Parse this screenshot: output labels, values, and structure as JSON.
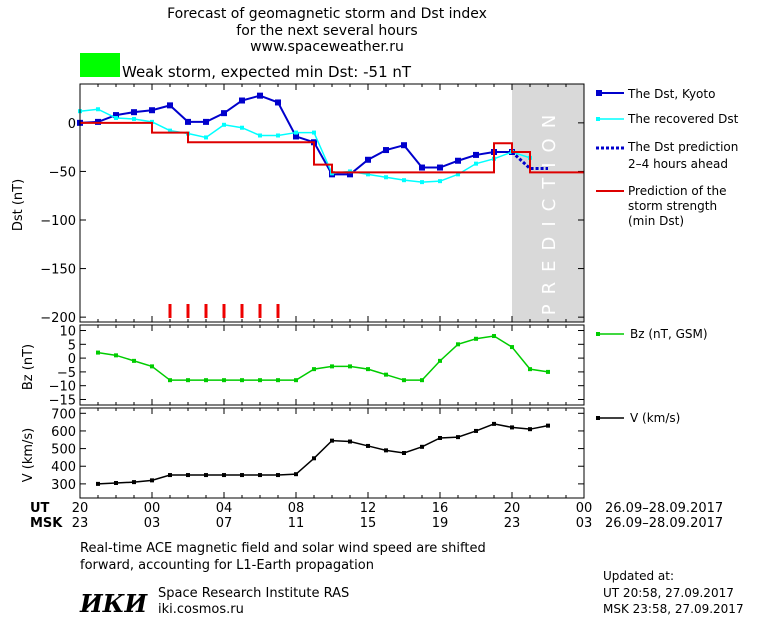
{
  "header": {
    "title_line1": "Forecast of geomagnetic storm and Dst index",
    "title_line2": "for the next several hours",
    "url": "www.spaceweather.ru",
    "storm_status": "Weak storm, expected min Dst: -51 nT",
    "storm_color": "#00ff00"
  },
  "colors": {
    "dst_kyoto": "#0000cc",
    "dst_recovered": "#00ffff",
    "dst_prediction": "#0000cc",
    "storm_strength": "#dd0000",
    "bz": "#00cc00",
    "speed": "#000000",
    "prediction_band": "#d9d9d9",
    "markers": "#ee0000"
  },
  "prediction_label": "PREDICTION",
  "legend": {
    "dst_kyoto": "The Dst, Kyoto",
    "dst_recovered": "The recovered Dst",
    "dst_prediction_1": "The Dst prediction",
    "dst_prediction_2": "2–4 hours ahead",
    "strength_1": "Prediction of the",
    "strength_2": "storm strength",
    "strength_3": "(min Dst)",
    "bz": "Bz (nT, GSM)",
    "speed": "V (km/s)"
  },
  "time_axis": {
    "ut_label": "UT",
    "msk_label": "MSK",
    "ut_ticks": [
      "20",
      "00",
      "04",
      "08",
      "12",
      "16",
      "20",
      "00"
    ],
    "msk_ticks": [
      "23",
      "03",
      "07",
      "11",
      "15",
      "19",
      "23",
      "03"
    ],
    "range_ut": "26.09–28.09.2017",
    "range_msk": "26.09–28.09.2017"
  },
  "footer": {
    "note_line1": "Real-time ACE magnetic field and solar wind speed are shifted",
    "note_line2": "forward, accounting for L1-Earth propagation",
    "institute": "Space Research Institute RAS",
    "site": "iki.cosmos.ru",
    "logo_text": "ИКИ",
    "updated_label": "Updated at:",
    "updated_ut": "UT   20:58, 27.09.2017",
    "updated_msk": "MSK 23:58, 27.09.2017"
  },
  "chart_data": [
    {
      "type": "line",
      "ylabel": "Dst (nT)",
      "x_unit": "hours after 20 UT, 26.09.2017",
      "xlim": [
        0,
        28
      ],
      "ylim": [
        -205,
        40
      ],
      "y_ticks": [
        0,
        -50,
        -100,
        -150,
        -200
      ],
      "y_tick_labels": [
        "0",
        "−50",
        "−100",
        "−150",
        "−200"
      ],
      "prediction_region": [
        24,
        28
      ],
      "series": [
        {
          "name": "The Dst, Kyoto",
          "x": [
            0,
            1,
            2,
            3,
            4,
            5,
            6,
            7,
            8,
            9,
            10,
            11,
            12,
            13,
            14,
            15,
            16,
            17,
            18,
            19,
            20,
            21,
            22,
            23,
            24
          ],
          "y": [
            0,
            1,
            8,
            11,
            13,
            18,
            1,
            1,
            10,
            23,
            28,
            21,
            -14,
            -20,
            -53,
            -53,
            -38,
            -28,
            -23,
            -46,
            -46,
            -39,
            -33,
            -30,
            -30
          ]
        },
        {
          "name": "The recovered Dst",
          "x": [
            0,
            1,
            2,
            3,
            4,
            5,
            6,
            7,
            8,
            9,
            10,
            11,
            12,
            13,
            14,
            15,
            16,
            17,
            18,
            19,
            20,
            21,
            22,
            23,
            24,
            25
          ],
          "y": [
            12,
            14,
            5,
            4,
            1,
            -8,
            -11,
            -15,
            -2,
            -5,
            -13,
            -13,
            -10,
            -10,
            -52,
            -50,
            -53,
            -56,
            -59,
            -61,
            -60,
            -53,
            -42,
            -37,
            -30,
            -36
          ]
        },
        {
          "name": "The Dst prediction",
          "x": [
            24,
            25,
            26
          ],
          "y": [
            -30,
            -47,
            -47
          ]
        },
        {
          "name": "Prediction of the storm strength (min Dst)",
          "x": [
            0,
            3,
            4,
            5,
            6,
            7,
            8,
            9,
            10,
            11,
            12,
            13,
            14,
            15,
            16,
            17,
            18,
            19,
            20,
            21,
            22,
            23,
            24,
            25,
            26,
            27,
            28
          ],
          "y": [
            0,
            0,
            -10,
            -10,
            -20,
            -20,
            -20,
            -20,
            -20,
            -20,
            -20,
            -43,
            -51,
            -51,
            -51,
            -51,
            -51,
            -51,
            -51,
            -51,
            -51,
            -21,
            -30,
            -51,
            -51,
            -51,
            -51
          ]
        }
      ],
      "markers_x": [
        5,
        6,
        7,
        8,
        9,
        10,
        11
      ]
    },
    {
      "type": "line",
      "ylabel": "Bz (nT)",
      "xlim": [
        0,
        28
      ],
      "ylim": [
        -17,
        12
      ],
      "y_ticks": [
        10,
        5,
        0,
        -5,
        -10,
        -15
      ],
      "y_tick_labels": [
        "10",
        "5",
        "0",
        "−5",
        "−10",
        "−15"
      ],
      "series": [
        {
          "name": "Bz (nT, GSM)",
          "x": [
            1,
            2,
            3,
            4,
            5,
            6,
            7,
            8,
            9,
            10,
            11,
            12,
            13,
            14,
            15,
            16,
            17,
            18,
            19,
            20,
            21,
            22,
            23,
            24,
            25,
            26
          ],
          "y": [
            2,
            1,
            -1,
            -3,
            -8,
            -8,
            -8,
            -8,
            -8,
            -8,
            -8,
            -8,
            -4,
            -3,
            -3,
            -4,
            -6,
            -8,
            -8,
            -1,
            5,
            7,
            8,
            4,
            -4,
            -5
          ]
        }
      ]
    },
    {
      "type": "line",
      "ylabel": "V (km/s)",
      "xlim": [
        0,
        28
      ],
      "ylim": [
        220,
        730
      ],
      "y_ticks": [
        700,
        600,
        500,
        400,
        300
      ],
      "y_tick_labels": [
        "700",
        "600",
        "500",
        "400",
        "300"
      ],
      "series": [
        {
          "name": "V (km/s)",
          "x": [
            1,
            2,
            3,
            4,
            5,
            6,
            7,
            8,
            9,
            10,
            11,
            12,
            13,
            14,
            15,
            16,
            17,
            18,
            19,
            20,
            21,
            22,
            23,
            24,
            25,
            26
          ],
          "y": [
            300,
            305,
            310,
            320,
            350,
            350,
            350,
            350,
            350,
            350,
            350,
            355,
            445,
            545,
            540,
            515,
            490,
            475,
            510,
            560,
            565,
            600,
            640,
            620,
            610,
            630
          ]
        }
      ]
    }
  ]
}
